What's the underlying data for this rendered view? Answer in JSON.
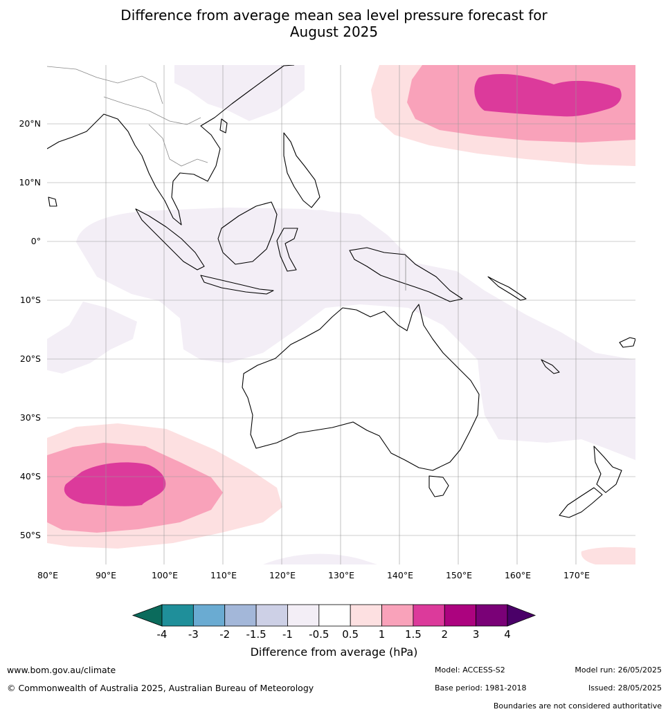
{
  "title_line1": "Difference from average mean sea level pressure forecast for",
  "title_line2": "August 2025",
  "lat_labels": [
    "20°N",
    "10°N",
    "0°",
    "10°S",
    "20°S",
    "30°S",
    "40°S",
    "50°S"
  ],
  "lon_labels": [
    "80°E",
    "90°E",
    "100°E",
    "110°E",
    "120°E",
    "130°E",
    "140°E",
    "150°E",
    "160°E",
    "170°E"
  ],
  "colorbar": {
    "title": "Difference from average (hPa)",
    "tick_labels": [
      "-4",
      "-3",
      "-2",
      "-1.5",
      "-1",
      "-0.5",
      "0.5",
      "1",
      "1.5",
      "2",
      "3",
      "4"
    ],
    "colors": [
      "#0b6b5c",
      "#1f8f9a",
      "#6aabd2",
      "#a3b7d9",
      "#cdd0e6",
      "#f3eef6",
      "#ffffff",
      "#fde0e1",
      "#f9a2ba",
      "#dc3a9b",
      "#ac037f",
      "#7a0177",
      "#4a0068"
    ]
  },
  "footer": {
    "website": "www.bom.gov.au/climate",
    "copyright": "© Commonwealth of Australia 2025, Australian Bureau of Meteorology",
    "model": "Model: ACCESS-S2",
    "base_period": "Base period: 1981-2018",
    "model_run": "Model run: 26/05/2025",
    "issued": "Issued: 28/05/2025",
    "disclaimer": "Boundaries are not considered authoritative"
  }
}
